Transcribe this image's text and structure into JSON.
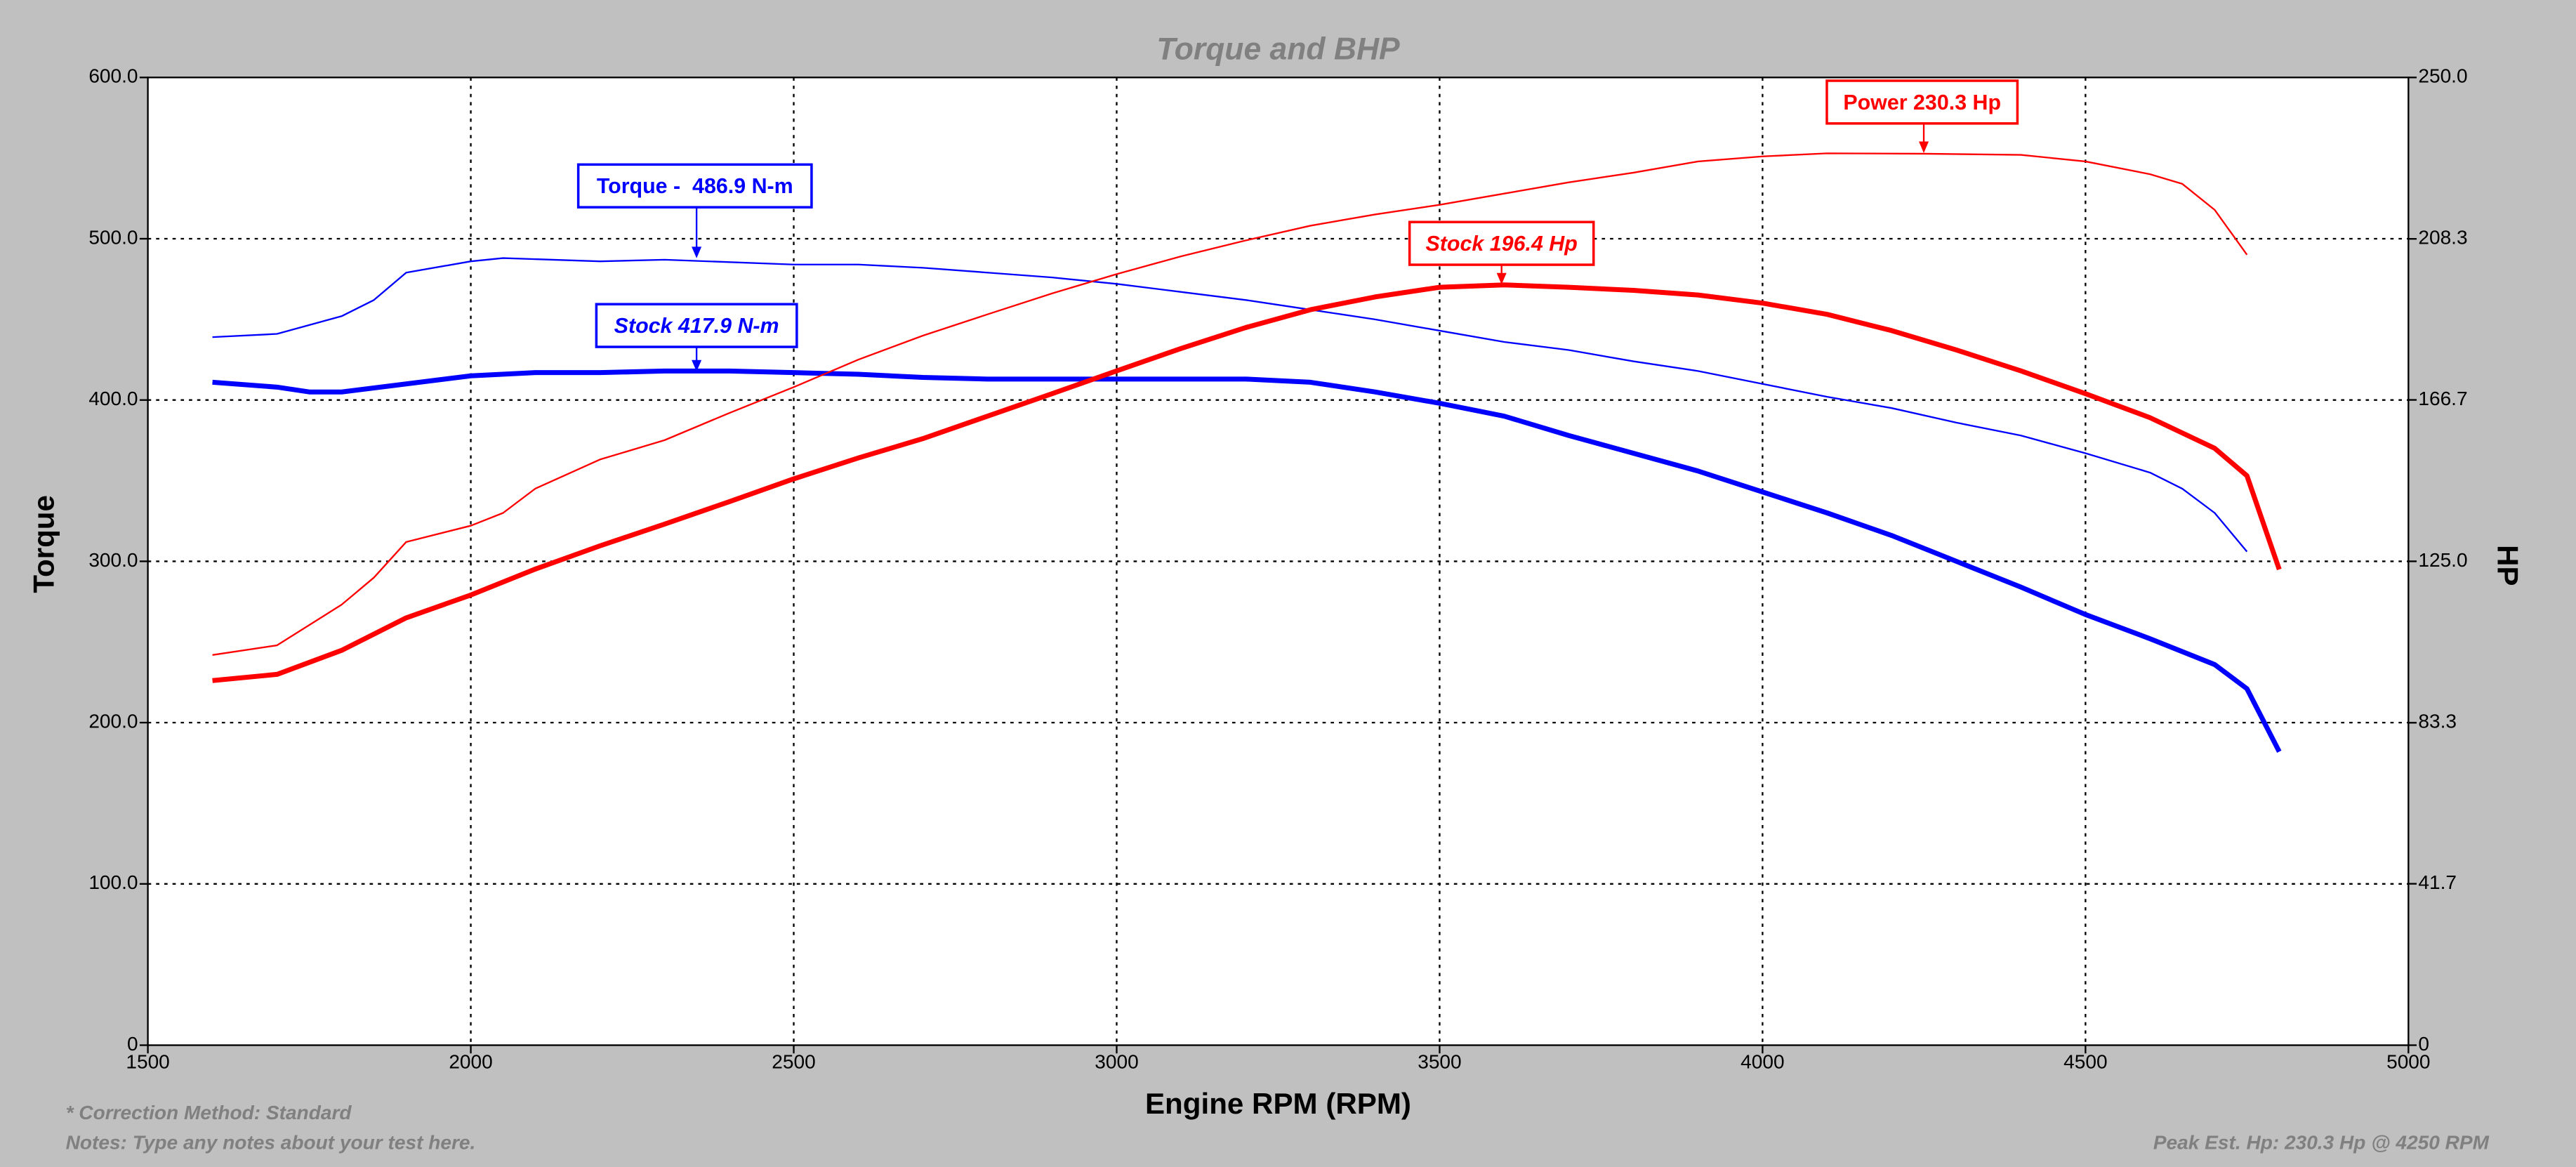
{
  "chart_data": {
    "type": "line",
    "title": "Torque and BHP",
    "xlabel": "Engine RPM (RPM)",
    "ylabel": "Torque",
    "y2label": "HP",
    "xlim": [
      1500,
      5000
    ],
    "xticks": [
      1500,
      2000,
      2500,
      3000,
      3500,
      4000,
      4500,
      5000
    ],
    "ylim": [
      0,
      600
    ],
    "yticks": [
      0,
      {
        "value": 100,
        "label": "100.0"
      },
      {
        "value": 200,
        "label": "200.0"
      },
      {
        "value": 300,
        "label": "300.0"
      },
      {
        "value": 400,
        "label": "400.0"
      },
      {
        "value": 500,
        "label": "500.0"
      },
      {
        "value": 600,
        "label": "600.0"
      }
    ],
    "y2lim": [
      0,
      250
    ],
    "y2ticks": [
      0,
      {
        "value": 41.7,
        "label": "41.7"
      },
      {
        "value": 83.3,
        "label": "83.3"
      },
      {
        "value": 125,
        "label": "125.0"
      },
      {
        "value": 166.7,
        "label": "166.7"
      },
      {
        "value": 208.3,
        "label": "208.3"
      },
      {
        "value": 250,
        "label": "250.0"
      }
    ],
    "grid": true,
    "series": [
      {
        "name": "Torque",
        "color": "#0000ff",
        "width": 1,
        "x": [
          1600,
          1700,
          1800,
          1850,
          1900,
          2000,
          2050,
          2200,
          2300,
          2500,
          2600,
          2700,
          2800,
          2900,
          3000,
          3100,
          3200,
          3300,
          3400,
          3500,
          3600,
          3700,
          3800,
          3900,
          4000,
          4100,
          4200,
          4300,
          4400,
          4500,
          4600,
          4650,
          4700,
          4750
        ],
        "values": [
          439,
          441,
          452,
          462,
          479,
          486,
          488,
          486,
          487,
          484,
          484,
          482,
          479,
          476,
          472,
          467,
          462,
          456,
          450,
          443,
          436,
          431,
          424,
          418,
          410,
          402,
          395,
          386,
          378,
          367,
          355,
          345,
          330,
          306
        ]
      },
      {
        "name": "Stock Torque",
        "color": "#0000ff",
        "width": 3,
        "x": [
          1600,
          1700,
          1750,
          1800,
          1900,
          2000,
          2100,
          2200,
          2300,
          2400,
          2500,
          2600,
          2700,
          2800,
          2900,
          3000,
          3100,
          3200,
          3300,
          3400,
          3500,
          3600,
          3700,
          3800,
          3900,
          4000,
          4100,
          4200,
          4300,
          4400,
          4500,
          4600,
          4700,
          4750,
          4800
        ],
        "values": [
          411,
          408,
          405,
          405,
          410,
          415,
          417,
          417,
          418,
          418,
          417,
          416,
          414,
          413,
          413,
          413,
          413,
          413,
          411,
          405,
          398,
          390,
          378,
          367,
          356,
          343,
          330,
          316,
          300,
          284,
          267,
          252,
          236,
          221,
          182
        ]
      },
      {
        "name": "Power",
        "color": "#ff0000",
        "width": 1,
        "axis": "y2",
        "x": [
          1600,
          1700,
          1800,
          1850,
          1900,
          2000,
          2050,
          2100,
          2200,
          2300,
          2400,
          2500,
          2600,
          2700,
          2800,
          2900,
          3000,
          3100,
          3200,
          3300,
          3400,
          3500,
          3600,
          3700,
          3800,
          3900,
          4000,
          4100,
          4250,
          4400,
          4500,
          4600,
          4650,
          4700,
          4750
        ],
        "values": [
          100.8,
          103.3,
          113.8,
          120.8,
          130,
          134.2,
          137.5,
          143.8,
          151.3,
          156.3,
          163.3,
          170,
          177.1,
          183.3,
          188.8,
          194.2,
          199.2,
          203.8,
          207.9,
          211.7,
          214.6,
          217.1,
          220,
          222.9,
          225.4,
          228.3,
          229.6,
          230.4,
          230.3,
          230,
          228.3,
          225,
          222.5,
          215.8,
          204.2
        ]
      },
      {
        "name": "Stock Power",
        "color": "#ff0000",
        "width": 3,
        "axis": "y2",
        "x": [
          1600,
          1700,
          1800,
          1900,
          2000,
          2100,
          2200,
          2300,
          2400,
          2500,
          2600,
          2700,
          2800,
          2900,
          3000,
          3100,
          3200,
          3300,
          3400,
          3500,
          3600,
          3700,
          3800,
          3900,
          4000,
          4100,
          4200,
          4300,
          4400,
          4500,
          4600,
          4700,
          4750,
          4800
        ],
        "values": [
          94.2,
          95.8,
          102,
          110.4,
          116.3,
          123,
          129,
          134.6,
          140.4,
          146.3,
          151.7,
          156.7,
          162.5,
          168.3,
          174.2,
          180,
          185.4,
          190,
          193.3,
          195.8,
          196.4,
          195.8,
          195,
          193.8,
          191.7,
          188.8,
          184.6,
          179.6,
          174.2,
          168.3,
          162.1,
          154.2,
          147.1,
          122.9
        ]
      }
    ],
    "annotations": [
      {
        "text": "Torque -  486.9 N-m",
        "color": "#0000ff"
      },
      {
        "text": "Stock 417.9 N-m",
        "color": "#0000ff"
      },
      {
        "text": "Power 230.3 Hp",
        "color": "#ff0000"
      },
      {
        "text": "Stock 196.4 Hp",
        "color": "#ff0000"
      }
    ],
    "footnotes": [
      "* Correction Method: Standard",
      "Notes: Type any notes about your test here."
    ],
    "peak_note": "Peak Est. Hp: 230.3 Hp @ 4250 RPM"
  }
}
